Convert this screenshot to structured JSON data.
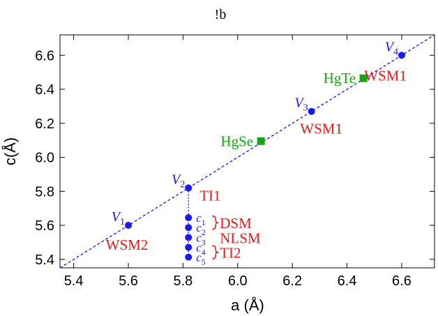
{
  "panel_label": "!b",
  "chart_data": {
    "type": "scatter",
    "xlabel": "a (Å)",
    "ylabel": "c(Å)",
    "xlim": [
      5.35,
      6.72
    ],
    "ylim": [
      5.35,
      6.72
    ],
    "xticks": [
      "5.4",
      "5.6",
      "5.8",
      "6.0",
      "6.2",
      "6.4",
      "6.6"
    ],
    "yticks": [
      "5.4",
      "5.6",
      "5.8",
      "6.0",
      "6.2",
      "6.4",
      "6.6"
    ],
    "trend_line": {
      "style": "dashed",
      "color": "#1515e0",
      "from": [
        5.35,
        5.35
      ],
      "to": [
        6.72,
        6.72
      ]
    },
    "vertical_segment": {
      "style": "dotted",
      "color": "#1515e0",
      "x": 5.82,
      "y_from": 5.82,
      "y_to": 5.42
    },
    "series": [
      {
        "marker": "circle",
        "color": "#1a1aee",
        "points": [
          {
            "x": 5.6,
            "y": 5.6,
            "label": "V",
            "sub": "1"
          },
          {
            "x": 5.82,
            "y": 5.82,
            "label": "V",
            "sub": "2"
          },
          {
            "x": 6.27,
            "y": 6.27,
            "label": "V",
            "sub": "3"
          },
          {
            "x": 6.6,
            "y": 6.6,
            "label": "V",
            "sub": "4"
          },
          {
            "x": 5.82,
            "y": 5.645,
            "label": "c",
            "sub": "1"
          },
          {
            "x": 5.82,
            "y": 5.587,
            "label": "c",
            "sub": "2"
          },
          {
            "x": 5.82,
            "y": 5.529,
            "label": "c",
            "sub": "3"
          },
          {
            "x": 5.82,
            "y": 5.471,
            "label": "c",
            "sub": "4"
          },
          {
            "x": 5.82,
            "y": 5.413,
            "label": "c",
            "sub": "5"
          }
        ]
      },
      {
        "marker": "square",
        "color": "#15a515",
        "points": [
          {
            "x": 6.085,
            "y": 6.095,
            "label": "HgSe"
          },
          {
            "x": 6.46,
            "y": 6.465,
            "label": "HgTe"
          }
        ]
      }
    ],
    "annotations": [
      {
        "text": "WSM2",
        "color": "#e81818",
        "x": 5.6,
        "y": 5.6
      },
      {
        "text": "TI1",
        "color": "#e81818",
        "x": 5.82,
        "y": 5.82
      },
      {
        "text": "WSM1",
        "color": "#e81818",
        "x": 6.27,
        "y": 6.27
      },
      {
        "text": "WSM1",
        "color": "#e81818",
        "x": 6.6,
        "y": 6.6
      },
      {
        "text": "DSM",
        "color": "#e81818",
        "x": 5.82,
        "y": 5.616
      },
      {
        "text": "NLSM",
        "color": "#e81818",
        "x": 5.82,
        "y": 5.529
      },
      {
        "text": "TI2",
        "color": "#e81818",
        "x": 5.82,
        "y": 5.442
      }
    ],
    "phase_braces": {
      "color": "#e81818"
    },
    "grid": false
  }
}
